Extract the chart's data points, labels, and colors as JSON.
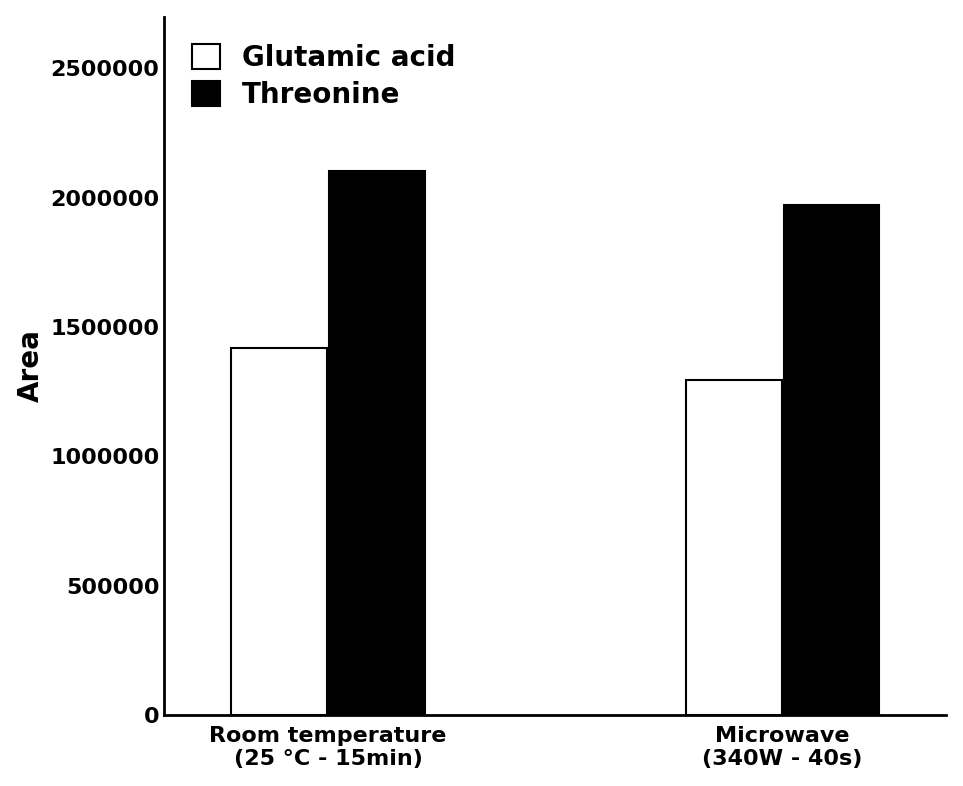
{
  "categories": [
    "Room temperature\n(25 °C - 15min)",
    "Microwave\n(340W - 40s)"
  ],
  "glutamic_acid": [
    1420000,
    1295000
  ],
  "threonine": [
    2105000,
    1970000
  ],
  "bar_colors_glutamic": "#ffffff",
  "bar_colors_threonine": "#000000",
  "bar_edgecolor": "#000000",
  "ylabel": "Area",
  "ylim": [
    0,
    2700000
  ],
  "yticks": [
    0,
    500000,
    1000000,
    1500000,
    2000000,
    2500000
  ],
  "legend_labels": [
    "Glutamic acid",
    "Threonine"
  ],
  "bar_width": 0.42,
  "background_color": "#ffffff",
  "ylabel_fontsize": 20,
  "tick_fontsize": 16,
  "legend_fontsize": 20,
  "axis_linewidth": 2.0
}
